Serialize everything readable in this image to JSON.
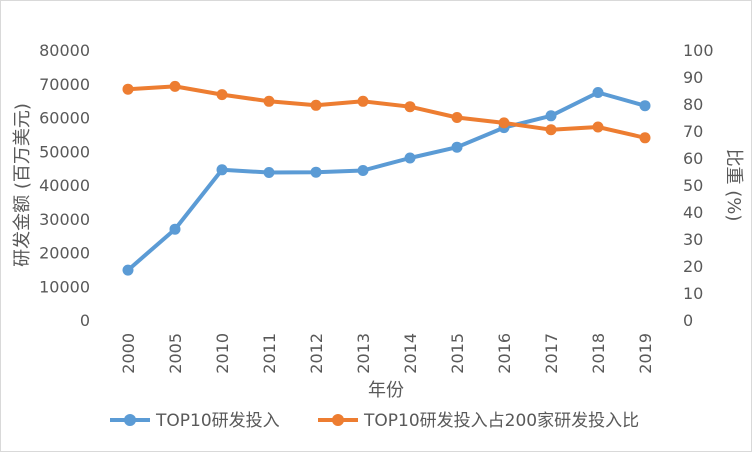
{
  "chart_data": {
    "type": "line",
    "categories": [
      "2000",
      "2005",
      "2010",
      "2011",
      "2012",
      "2013",
      "2014",
      "2015",
      "2016",
      "2017",
      "2018",
      "2019"
    ],
    "xlabel": "年份",
    "ylabel_left": "研发金额 (百万美元)",
    "ylabel_right": "比重 (%)",
    "ylim_left": [
      0,
      80000
    ],
    "ylim_right": [
      0,
      100
    ],
    "yticks_left": [
      "80000",
      "70000",
      "60000",
      "50000",
      "40000",
      "30000",
      "20000",
      "10000",
      "0"
    ],
    "yticks_right": [
      "100",
      "90",
      "80",
      "70",
      "60",
      "50",
      "40",
      "30",
      "20",
      "10",
      "0"
    ],
    "grid": false,
    "legend_position": "bottom",
    "series": [
      {
        "name": "TOP10研发投入",
        "axis": "left",
        "color": "#5b9bd5",
        "values": [
          14800,
          26900,
          44500,
          43700,
          43800,
          44300,
          48000,
          51200,
          57000,
          60500,
          67400,
          63500
        ]
      },
      {
        "name": "TOP10研发投入占200家研发投入比",
        "axis": "right",
        "color": "#ed7d31",
        "values": [
          85.5,
          86.5,
          83.5,
          81,
          79.5,
          81,
          79,
          75,
          73,
          70.5,
          71.5,
          67.5
        ]
      }
    ]
  }
}
